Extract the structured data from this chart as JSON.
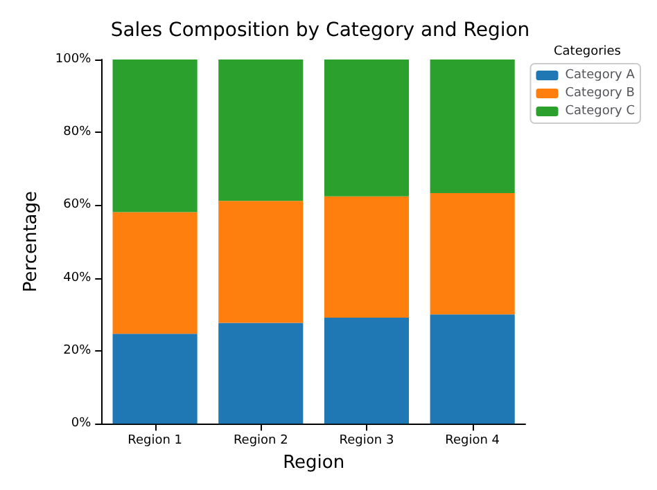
{
  "chart_data": {
    "type": "bar",
    "title": "Sales Composition by Category and Region",
    "xlabel": "Region",
    "ylabel": "Percentage",
    "legend_title": "Categories",
    "categories": [
      "Region 1",
      "Region 2",
      "Region 3",
      "Region 4"
    ],
    "stacked": true,
    "series": [
      {
        "name": "Category A",
        "color": "#1f77b4",
        "values": [
          24.7,
          27.7,
          29.1,
          30.0
        ]
      },
      {
        "name": "Category B",
        "color": "#ff7f0e",
        "values": [
          33.4,
          33.5,
          33.3,
          33.3
        ]
      },
      {
        "name": "Category C",
        "color": "#2ca02c",
        "values": [
          41.9,
          38.8,
          37.6,
          36.7
        ]
      }
    ],
    "ylim": [
      0,
      100
    ],
    "yticks": [
      {
        "value": 0,
        "label": "0%"
      },
      {
        "value": 20,
        "label": "20%"
      },
      {
        "value": 40,
        "label": "40%"
      },
      {
        "value": 60,
        "label": "60%"
      },
      {
        "value": 80,
        "label": "80%"
      },
      {
        "value": 100,
        "label": "100%"
      }
    ],
    "grid": false,
    "legend": "top right"
  }
}
